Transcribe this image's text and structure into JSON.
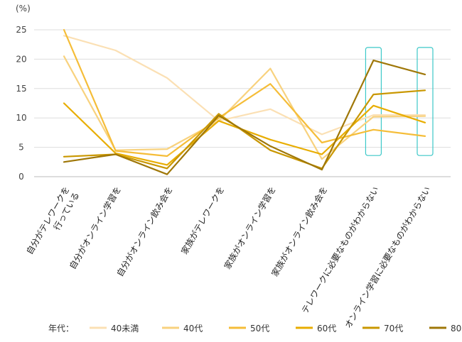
{
  "chart_data": {
    "type": "line",
    "unit": "(%)",
    "ylim": [
      0,
      25
    ],
    "yticks": [
      0,
      5,
      10,
      15,
      20,
      25
    ],
    "grid": true,
    "categories": [
      [
        "自分がテレワークを",
        "行っている"
      ],
      [
        "自分がオンライン学習を"
      ],
      [
        "自分がオンライン飲み会を"
      ],
      [
        "家族がテレワークを"
      ],
      [
        "家族がオンライン学習を"
      ],
      [
        "家族がオンライン飲み会を"
      ],
      [
        "テレワークに必要なものがわからない"
      ],
      [
        "オンライン学習に必要なものがわからない"
      ]
    ],
    "legend_title": "年代：",
    "legend_position": "bottom",
    "series": [
      {
        "name": "40未満",
        "color": "#fbe0b4",
        "values": [
          24.0,
          21.5,
          16.8,
          9.5,
          11.5,
          7.2,
          10.5,
          10.5
        ]
      },
      {
        "name": "40代",
        "color": "#f8d27e",
        "values": [
          20.5,
          4.5,
          4.7,
          9.5,
          18.4,
          3.0,
          10.2,
          10.3
        ]
      },
      {
        "name": "50代",
        "color": "#f5bd38",
        "values": [
          25.0,
          4.4,
          3.5,
          10.0,
          15.8,
          5.8,
          8.0,
          6.9
        ]
      },
      {
        "name": "60代",
        "color": "#e8ad00",
        "values": [
          12.5,
          4.0,
          2.0,
          9.5,
          6.3,
          3.8,
          12.1,
          9.2
        ]
      },
      {
        "name": "70代",
        "color": "#c99700",
        "values": [
          3.4,
          3.8,
          1.4,
          10.7,
          4.5,
          1.4,
          14.0,
          14.7
        ]
      },
      {
        "name": "80以上",
        "color": "#9f7708",
        "values": [
          2.5,
          3.8,
          0.4,
          10.4,
          5.2,
          1.2,
          19.8,
          17.4
        ]
      }
    ],
    "highlight_color": "#3cc8c8",
    "highlight_categories": [
      6,
      7
    ]
  }
}
